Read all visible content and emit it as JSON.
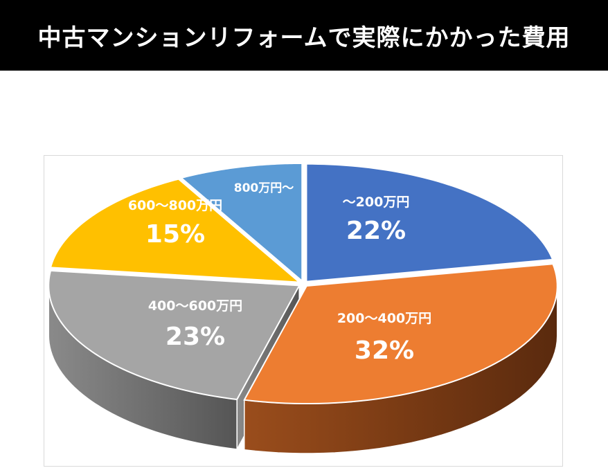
{
  "header": {
    "title": "中古マンションリフォームで実際にかかった費用"
  },
  "chart_data": {
    "type": "pie",
    "title": "中古マンションリフォームで実際にかかった費用",
    "slices": [
      {
        "label": "～200万円",
        "value": 22,
        "value_label": "22%",
        "color": "#4472C4"
      },
      {
        "label": "200～400万円",
        "value": 32,
        "value_label": "32%",
        "color": "#ED7D31"
      },
      {
        "label": "400～600万円",
        "value": 23,
        "value_label": "23%",
        "color": "#A5A5A5"
      },
      {
        "label": "600～800万円",
        "value": 15,
        "value_label": "15%",
        "color": "#FFC000"
      },
      {
        "label": "800万円～",
        "value": 8,
        "value_label": "",
        "color": "#5B9BD5"
      }
    ],
    "style": "3d-exploded"
  }
}
